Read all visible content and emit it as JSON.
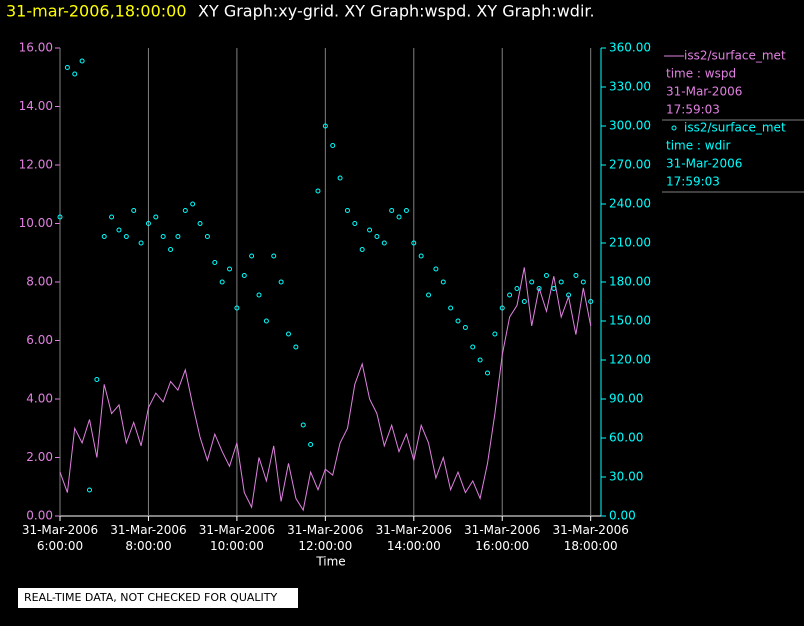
{
  "chart_data": {
    "type": "line_scatter",
    "title": "31-mar-2006,18:00:00",
    "subtitle": "XY Graph:xy-grid.  XY Graph:wspd.  XY Graph:wdir.",
    "x_label": "Time",
    "footnote": "REAL-TIME DATA, NOT CHECKED FOR QUALITY",
    "x": [
      "2006-03-31T06:00:00",
      "2006-03-31T06:10:00",
      "2006-03-31T06:20:00",
      "2006-03-31T06:30:00",
      "2006-03-31T06:40:00",
      "2006-03-31T06:50:00",
      "2006-03-31T07:00:00",
      "2006-03-31T07:10:00",
      "2006-03-31T07:20:00",
      "2006-03-31T07:30:00",
      "2006-03-31T07:40:00",
      "2006-03-31T07:50:00",
      "2006-03-31T08:00:00",
      "2006-03-31T08:10:00",
      "2006-03-31T08:20:00",
      "2006-03-31T08:30:00",
      "2006-03-31T08:40:00",
      "2006-03-31T08:50:00",
      "2006-03-31T09:00:00",
      "2006-03-31T09:10:00",
      "2006-03-31T09:20:00",
      "2006-03-31T09:30:00",
      "2006-03-31T09:40:00",
      "2006-03-31T09:50:00",
      "2006-03-31T10:00:00",
      "2006-03-31T10:10:00",
      "2006-03-31T10:20:00",
      "2006-03-31T10:30:00",
      "2006-03-31T10:40:00",
      "2006-03-31T10:50:00",
      "2006-03-31T11:00:00",
      "2006-03-31T11:10:00",
      "2006-03-31T11:20:00",
      "2006-03-31T11:30:00",
      "2006-03-31T11:40:00",
      "2006-03-31T11:50:00",
      "2006-03-31T12:00:00",
      "2006-03-31T12:10:00",
      "2006-03-31T12:20:00",
      "2006-03-31T12:30:00",
      "2006-03-31T12:40:00",
      "2006-03-31T12:50:00",
      "2006-03-31T13:00:00",
      "2006-03-31T13:10:00",
      "2006-03-31T13:20:00",
      "2006-03-31T13:30:00",
      "2006-03-31T13:40:00",
      "2006-03-31T13:50:00",
      "2006-03-31T14:00:00",
      "2006-03-31T14:10:00",
      "2006-03-31T14:20:00",
      "2006-03-31T14:30:00",
      "2006-03-31T14:40:00",
      "2006-03-31T14:50:00",
      "2006-03-31T15:00:00",
      "2006-03-31T15:10:00",
      "2006-03-31T15:20:00",
      "2006-03-31T15:30:00",
      "2006-03-31T15:40:00",
      "2006-03-31T15:50:00",
      "2006-03-31T16:00:00",
      "2006-03-31T16:10:00",
      "2006-03-31T16:20:00",
      "2006-03-31T16:30:00",
      "2006-03-31T16:40:00",
      "2006-03-31T16:50:00",
      "2006-03-31T17:00:00",
      "2006-03-31T17:10:00",
      "2006-03-31T17:20:00",
      "2006-03-31T17:30:00",
      "2006-03-31T17:40:00",
      "2006-03-31T17:50:00",
      "2006-03-31T18:00:00"
    ],
    "xlim": [
      "2006-03-31T06:00:00",
      "2006-03-31T18:14:00"
    ],
    "xticks": [
      {
        "value": "2006-03-31T06:00:00",
        "label": "31-Mar-2006\n6:00:00"
      },
      {
        "value": "2006-03-31T08:00:00",
        "label": "31-Mar-2006\n8:00:00"
      },
      {
        "value": "2006-03-31T10:00:00",
        "label": "31-Mar-2006\n10:00:00"
      },
      {
        "value": "2006-03-31T12:00:00",
        "label": "31-Mar-2006\n12:00:00"
      },
      {
        "value": "2006-03-31T14:00:00",
        "label": "31-Mar-2006\n14:00:00"
      },
      {
        "value": "2006-03-31T16:00:00",
        "label": "31-Mar-2006\n16:00:00"
      },
      {
        "value": "2006-03-31T18:00:00",
        "label": "31-Mar-2006\n18:00:00"
      }
    ],
    "ylim": [
      0,
      16
    ],
    "yticks": [
      {
        "value": 0,
        "label": "0.00"
      },
      {
        "value": 2,
        "label": "2.00"
      },
      {
        "value": 4,
        "label": "4.00"
      },
      {
        "value": 6,
        "label": "6.00"
      },
      {
        "value": 8,
        "label": "8.00"
      },
      {
        "value": 10,
        "label": "10.00"
      },
      {
        "value": 12,
        "label": "12.00"
      },
      {
        "value": 14,
        "label": "14.00"
      },
      {
        "value": 16,
        "label": "16.00"
      }
    ],
    "y2lim": [
      0,
      360
    ],
    "y2ticks": [
      {
        "value": 0,
        "label": "0.00"
      },
      {
        "value": 30,
        "label": "30.00"
      },
      {
        "value": 60,
        "label": "60.00"
      },
      {
        "value": 90,
        "label": "90.00"
      },
      {
        "value": 120,
        "label": "120.00"
      },
      {
        "value": 150,
        "label": "150.00"
      },
      {
        "value": 180,
        "label": "180.00"
      },
      {
        "value": 210,
        "label": "210.00"
      },
      {
        "value": 240,
        "label": "240.00"
      },
      {
        "value": 270,
        "label": "270.00"
      },
      {
        "value": 300,
        "label": "300.00"
      },
      {
        "value": 330,
        "label": "330.00"
      },
      {
        "value": 360,
        "label": "360.00"
      }
    ],
    "x_grid": true,
    "y_axis_color": "#e080e0",
    "y2_axis_color": "#00ffff",
    "series": [
      {
        "name": "iss2/surface_met",
        "legend_info": [
          "time : wspd",
          "31-Mar-2006",
          "17:59:03"
        ],
        "kind": "line",
        "color": "#e080e0",
        "values": [
          1.5,
          0.8,
          3.0,
          2.5,
          3.3,
          2.0,
          4.5,
          3.5,
          3.8,
          2.5,
          3.2,
          2.4,
          3.7,
          4.2,
          3.9,
          4.6,
          4.3,
          5.0,
          3.8,
          2.7,
          1.9,
          2.8,
          2.2,
          1.7,
          2.5,
          0.8,
          0.3,
          2.0,
          1.2,
          2.4,
          0.5,
          1.8,
          0.6,
          0.2,
          1.5,
          0.9,
          1.6,
          1.4,
          2.5,
          3.0,
          4.5,
          5.2,
          4.0,
          3.5,
          2.4,
          3.1,
          2.2,
          2.8,
          1.9,
          3.1,
          2.5,
          1.3,
          2.0,
          0.9,
          1.5,
          0.8,
          1.2,
          0.6,
          1.8,
          3.5,
          5.5,
          6.8,
          7.2,
          8.5,
          6.5,
          7.8,
          7.0,
          8.2,
          6.8,
          7.5,
          6.2,
          7.8,
          6.5
        ]
      },
      {
        "name": "iss2/surface_met",
        "legend_info": [
          "time : wdir",
          "31-Mar-2006",
          "17:59:03"
        ],
        "kind": "scatter",
        "axis": "y2",
        "color": "#00ffff",
        "values": [
          230,
          345,
          340,
          350,
          20,
          105,
          215,
          230,
          220,
          215,
          235,
          210,
          225,
          230,
          215,
          205,
          215,
          235,
          240,
          225,
          215,
          195,
          180,
          190,
          160,
          185,
          200,
          170,
          150,
          200,
          180,
          140,
          130,
          70,
          55,
          250,
          300,
          285,
          260,
          235,
          225,
          205,
          220,
          215,
          210,
          235,
          230,
          235,
          210,
          200,
          170,
          190,
          180,
          160,
          150,
          145,
          130,
          120,
          110,
          140,
          160,
          170,
          175,
          165,
          180,
          175,
          185,
          175,
          180,
          170,
          185,
          180,
          165
        ]
      }
    ]
  }
}
